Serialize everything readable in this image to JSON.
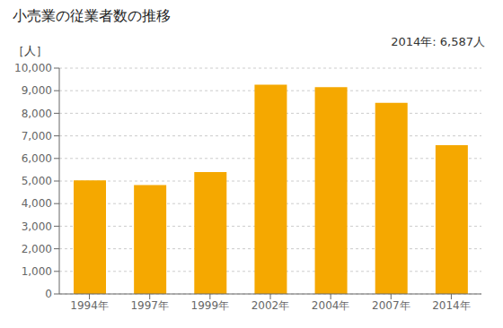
{
  "chart_data": {
    "type": "bar",
    "title": "小売業の従業者数の推移",
    "ylabel": "［人］",
    "annotation": "2014年: 6,587人",
    "categories": [
      "1994年",
      "1997年",
      "1999年",
      "2002年",
      "2004年",
      "2007年",
      "2014年"
    ],
    "values": [
      5030,
      4820,
      5400,
      9270,
      9160,
      8460,
      6587
    ],
    "color": "#F5A800",
    "ylim": [
      0,
      10000
    ],
    "yticks": [
      0,
      {
        "value": 1000,
        "label": "1,000"
      },
      {
        "value": 2000,
        "label": "2,000"
      },
      {
        "value": 3000,
        "label": "3,000"
      },
      {
        "value": 4000,
        "label": "4,000"
      },
      {
        "value": 5000,
        "label": "5,000"
      },
      {
        "value": 6000,
        "label": "6,000"
      },
      {
        "value": 7000,
        "label": "7,000"
      },
      {
        "value": 8000,
        "label": "8,000"
      },
      {
        "value": 9000,
        "label": "9,000"
      },
      {
        "value": 10000,
        "label": "10,000"
      }
    ],
    "grid": true
  }
}
